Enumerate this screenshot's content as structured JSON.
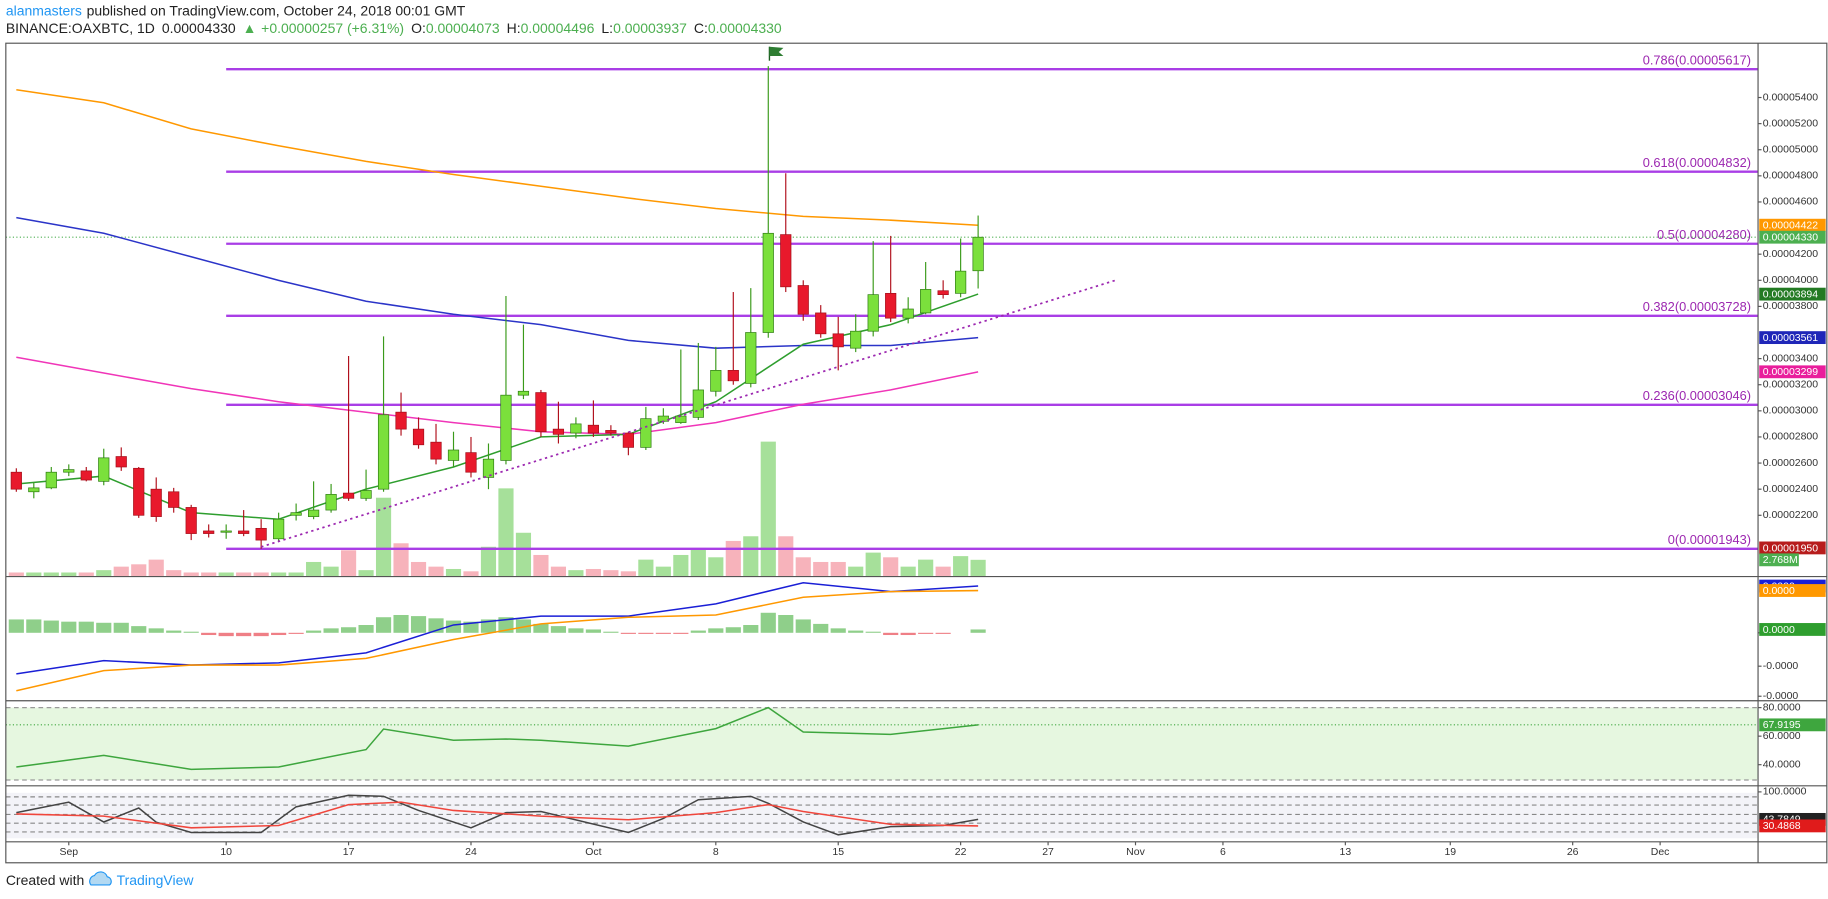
{
  "header": {
    "publisher": "alanmasters",
    "published": "published on TradingView.com, October 24, 2018 00:01 GMT",
    "symbol": "BINANCE:OAXBTC, 1D",
    "last": "0.00004330",
    "arrow": "▲",
    "change": "+0.00000257 (+6.31%)",
    "ohlc": [
      {
        "key": "O:",
        "value": "0.00004073"
      },
      {
        "key": "H:",
        "value": "0.00004496"
      },
      {
        "key": "L:",
        "value": "0.00003937"
      },
      {
        "key": "C:",
        "value": "0.00004330"
      }
    ]
  },
  "footer": {
    "created": "Created with",
    "brand": "TradingView"
  },
  "chart_data": [
    {
      "type": "candlestick",
      "xlim": [
        -0.6,
        99.6
      ],
      "xticks": [
        {
          "value": 3,
          "label": "Sep"
        },
        {
          "value": 12,
          "label": "10"
        },
        {
          "value": 19,
          "label": "17"
        },
        {
          "value": 26,
          "label": "24"
        },
        {
          "value": 33,
          "label": "Oct"
        },
        {
          "value": 40,
          "label": "8"
        },
        {
          "value": 47,
          "label": "15"
        },
        {
          "value": 54,
          "label": "22"
        },
        {
          "value": 59,
          "label": "27"
        },
        {
          "value": 64,
          "label": "Nov"
        },
        {
          "value": 69,
          "label": "6"
        },
        {
          "value": 76,
          "label": "13"
        },
        {
          "value": 82,
          "label": "19"
        },
        {
          "value": 89,
          "label": "26"
        },
        {
          "value": 94,
          "label": "Dec"
        }
      ],
      "ylim": [
        1.735e-05,
        5.807e-05
      ],
      "yticks": [
        {
          "value": 2.2e-05,
          "label": "0.00002200"
        },
        {
          "value": 2.4e-05,
          "label": "0.00002400"
        },
        {
          "value": 2.6e-05,
          "label": "0.00002600"
        },
        {
          "value": 2.8e-05,
          "label": "0.00002800"
        },
        {
          "value": 3e-05,
          "label": "0.00003000"
        },
        {
          "value": 3.2e-05,
          "label": "0.00003200"
        },
        {
          "value": 3.4e-05,
          "label": "0.00003400"
        },
        {
          "value": 3.8e-05,
          "label": "0.00003800"
        },
        {
          "value": 4e-05,
          "label": "0.00004000"
        },
        {
          "value": 4.2e-05,
          "label": "0.00004200"
        },
        {
          "value": 4.6e-05,
          "label": "0.00004600"
        },
        {
          "value": 4.8e-05,
          "label": "0.00004800"
        },
        {
          "value": 5e-05,
          "label": "0.00005000"
        },
        {
          "value": 5.2e-05,
          "label": "0.00005200"
        },
        {
          "value": 5.4e-05,
          "label": "0.00005400"
        }
      ],
      "up_color": "#7be03c",
      "down_color": "#e8192c",
      "open": [
        2.53e-05,
        2.38e-05,
        2.41e-05,
        2.53e-05,
        2.54e-05,
        2.46e-05,
        2.65e-05,
        2.56e-05,
        2.4e-05,
        2.38e-05,
        2.26e-05,
        2.08e-05,
        2.07e-05,
        2.08e-05,
        2.1e-05,
        2.02e-05,
        2.2e-05,
        2.19e-05,
        2.24e-05,
        2.37e-05,
        2.33e-05,
        2.4e-05,
        2.99e-05,
        2.86e-05,
        2.76e-05,
        2.62e-05,
        2.68e-05,
        2.49e-05,
        2.62e-05,
        3.12e-05,
        3.14e-05,
        2.86e-05,
        2.83e-05,
        2.89e-05,
        2.85e-05,
        2.83e-05,
        2.72e-05,
        2.92e-05,
        2.91e-05,
        2.95e-05,
        3.15e-05,
        3.31e-05,
        3.21e-05,
        3.6e-05,
        4.35e-05,
        3.96e-05,
        3.75e-05,
        3.59e-05,
        3.48e-05,
        3.61e-05,
        3.9e-05,
        3.71e-05,
        3.75e-05,
        3.92e-05,
        3.9e-05,
        4.073e-05
      ],
      "high": [
        2.56e-05,
        2.45e-05,
        2.57e-05,
        2.59e-05,
        2.57e-05,
        2.71e-05,
        2.72e-05,
        2.57e-05,
        2.49e-05,
        2.41e-05,
        2.28e-05,
        2.13e-05,
        2.13e-05,
        2.24e-05,
        2.17e-05,
        2.22e-05,
        2.29e-05,
        2.46e-05,
        2.44e-05,
        3.42e-05,
        2.55e-05,
        3.57e-05,
        3.14e-05,
        2.95e-05,
        2.9e-05,
        2.84e-05,
        2.8e-05,
        2.75e-05,
        3.88e-05,
        3.66e-05,
        3.16e-05,
        3.07e-05,
        2.95e-05,
        3.08e-05,
        2.89e-05,
        2.84e-05,
        3.03e-05,
        3.02e-05,
        3.47e-05,
        3.52e-05,
        3.49e-05,
        3.91e-05,
        3.94e-05,
        5.64e-05,
        4.82e-05,
        4e-05,
        3.81e-05,
        3.72e-05,
        3.74e-05,
        4.3e-05,
        4.34e-05,
        3.87e-05,
        4.14e-05,
        4e-05,
        4.32e-05,
        4.496e-05
      ],
      "low": [
        2.38e-05,
        2.33e-05,
        2.4e-05,
        2.5e-05,
        2.46e-05,
        2.43e-05,
        2.54e-05,
        2.18e-05,
        2.15e-05,
        2.22e-05,
        2.01e-05,
        2.03e-05,
        2.02e-05,
        2.04e-05,
        1.943e-05,
        2e-05,
        2.16e-05,
        2.17e-05,
        2.22e-05,
        2.31e-05,
        2.31e-05,
        2.38e-05,
        2.81e-05,
        2.71e-05,
        2.59e-05,
        2.57e-05,
        2.49e-05,
        2.4e-05,
        2.59e-05,
        3.09e-05,
        2.8e-05,
        2.75e-05,
        2.79e-05,
        2.8e-05,
        2.81e-05,
        2.66e-05,
        2.7e-05,
        2.9e-05,
        2.9e-05,
        2.93e-05,
        3.11e-05,
        3.2e-05,
        3.18e-05,
        3.56e-05,
        3.91e-05,
        3.69e-05,
        3.56e-05,
        3.31e-05,
        3.45e-05,
        3.57e-05,
        3.68e-05,
        3.67e-05,
        3.74e-05,
        3.86e-05,
        3.87e-05,
        3.937e-05
      ],
      "close": [
        2.4e-05,
        2.41e-05,
        2.53e-05,
        2.55e-05,
        2.47e-05,
        2.64e-05,
        2.57e-05,
        2.2e-05,
        2.19e-05,
        2.26e-05,
        2.06e-05,
        2.06e-05,
        2.08e-05,
        2.06e-05,
        2.01e-05,
        2.17e-05,
        2.22e-05,
        2.24e-05,
        2.36e-05,
        2.33e-05,
        2.39e-05,
        2.97e-05,
        2.86e-05,
        2.74e-05,
        2.63e-05,
        2.7e-05,
        2.53e-05,
        2.63e-05,
        3.12e-05,
        3.15e-05,
        2.84e-05,
        2.82e-05,
        2.9e-05,
        2.83e-05,
        2.83e-05,
        2.72e-05,
        2.94e-05,
        2.96e-05,
        2.96e-05,
        3.16e-05,
        3.31e-05,
        3.23e-05,
        3.6e-05,
        4.36e-05,
        3.95e-05,
        3.74e-05,
        3.59e-05,
        3.49e-05,
        3.61e-05,
        3.89e-05,
        3.71e-05,
        3.78e-05,
        3.93e-05,
        3.89e-05,
        4.07e-05,
        4.33e-05
      ],
      "vlim": [
        0,
        91000000
      ],
      "volume_colors": {
        "up": "#a6e09a",
        "down": "#f7b3bb"
      },
      "volume": [
        600000,
        600000,
        600000,
        600000,
        600000,
        1000000,
        1600000,
        2000000,
        2800000,
        1000000,
        600000,
        600000,
        600000,
        600000,
        600000,
        600000,
        600000,
        2400000,
        1600000,
        4400000,
        1000000,
        13400000,
        5600000,
        2400000,
        1600000,
        1200000,
        800000,
        5000000,
        15000000,
        7400000,
        3600000,
        1600000,
        1000000,
        1200000,
        1000000,
        800000,
        2800000,
        1600000,
        3600000,
        4800000,
        3200000,
        6000000,
        6800000,
        23000000,
        6800000,
        3200000,
        2400000,
        2400000,
        1600000,
        4000000,
        3200000,
        1600000,
        2800000,
        1600000,
        3400000,
        2768000
      ],
      "volume_label": {
        "value": 2768000,
        "label": "2.768M",
        "color": "#4caf50"
      },
      "moving_averages": [
        {
          "color": "#ff9800",
          "x": [
            0,
            5,
            10,
            15,
            20,
            25,
            30,
            35,
            40,
            45,
            50,
            55
          ],
          "values": [
            5.46e-05,
            5.36e-05,
            5.16e-05,
            5.03e-05,
            4.91e-05,
            4.81e-05,
            4.72e-05,
            4.63e-05,
            4.55e-05,
            4.49e-05,
            4.46e-05,
            4.422e-05
          ]
        },
        {
          "color": "#2b34c8",
          "x": [
            0,
            5,
            10,
            15,
            20,
            25,
            30,
            35,
            40,
            45,
            50,
            55
          ],
          "values": [
            4.48e-05,
            4.36e-05,
            4.18e-05,
            4e-05,
            3.84e-05,
            3.74e-05,
            3.66e-05,
            3.54e-05,
            3.48e-05,
            3.5e-05,
            3.5e-05,
            3.561e-05
          ]
        },
        {
          "color": "#f035b8",
          "x": [
            0,
            5,
            10,
            15,
            20,
            25,
            30,
            35,
            40,
            45,
            50,
            55
          ],
          "values": [
            3.41e-05,
            3.29e-05,
            3.17e-05,
            3.07e-05,
            2.99e-05,
            2.91e-05,
            2.84e-05,
            2.82e-05,
            2.91e-05,
            3.05e-05,
            3.16e-05,
            3.299e-05
          ]
        },
        {
          "color": "#2e9e2e",
          "x": [
            0,
            5,
            10,
            15,
            20,
            25,
            30,
            35,
            40,
            45,
            50,
            55
          ],
          "values": [
            2.44e-05,
            2.5e-05,
            2.22e-05,
            2.17e-05,
            2.4e-05,
            2.57e-05,
            2.8e-05,
            2.82e-05,
            3.07e-05,
            3.51e-05,
            3.66e-05,
            3.894e-05
          ]
        }
      ],
      "fib_color": "#a93ee6",
      "fib_levels": [
        {
          "label": "0.786(0.00005617)",
          "value": 5.617e-05
        },
        {
          "label": "0.618(0.00004832)",
          "value": 4.832e-05
        },
        {
          "label": "0.5(0.00004280)",
          "value": 4.28e-05
        },
        {
          "label": "0.382(0.00003728)",
          "value": 3.728e-05
        },
        {
          "label": "0.236(0.00003046)",
          "value": 3.046e-05
        },
        {
          "label": "0(0.00001943)",
          "value": 1.943e-05
        }
      ],
      "price_labels": [
        {
          "value": 4.422e-05,
          "label": "0.00004422",
          "color": "#ff9800"
        },
        {
          "value": 4.33e-05,
          "label": "0.00004330",
          "color": "#4caf50"
        },
        {
          "value": 3.894e-05,
          "label": "0.00003894",
          "color": "#237a23"
        },
        {
          "value": 3.561e-05,
          "label": "0.00003561",
          "color": "#1f26b8"
        },
        {
          "value": 3.299e-05,
          "label": "0.00003299",
          "color": "#e91e9c"
        },
        {
          "value": 1.95e-05,
          "label": "0.00001950",
          "color": "#b71c1c"
        }
      ]
    },
    {
      "type": "macd",
      "ylim": [
        -6e-07,
        5e-07
      ],
      "yticks": [
        {
          "value": 0,
          "label": "0.0000"
        },
        {
          "value": -3e-07,
          "label": "-0.0000"
        },
        {
          "value": -5.7e-07,
          "label": "-0.0000"
        }
      ],
      "histogram_colors": {
        "up": "#8fcf8a",
        "down": "#ef7f86"
      },
      "histogram": [
        1.2e-07,
        1.2e-07,
        1.1e-07,
        1e-07,
        1e-07,
        9e-08,
        9e-08,
        6e-08,
        4e-08,
        2e-08,
        1e-08,
        -2e-08,
        -3e-08,
        -3e-08,
        -3e-08,
        -2e-08,
        -1e-08,
        2e-08,
        4e-08,
        5e-08,
        7e-08,
        1.4e-07,
        1.6e-07,
        1.5e-07,
        1.3e-07,
        1.1e-07,
        1e-07,
        1.2e-07,
        1.4e-07,
        1.2e-07,
        8e-08,
        6e-08,
        4e-08,
        3e-08,
        1e-08,
        -1e-08,
        -1e-08,
        -1e-08,
        -1e-08,
        2e-08,
        4e-08,
        5e-08,
        7e-08,
        1.8e-07,
        1.6e-07,
        1.2e-07,
        8e-08,
        4e-08,
        2e-08,
        1e-08,
        -2e-08,
        -2e-08,
        -1e-08,
        -1e-08,
        0,
        3e-08
      ],
      "series": [
        {
          "color": "#1a1fd6",
          "x": [
            0,
            5,
            10,
            15,
            20,
            25,
            30,
            35,
            40,
            45,
            50,
            55
          ],
          "values": [
            -3.7e-07,
            -2.5e-07,
            -2.9e-07,
            -2.7e-07,
            -1.8e-07,
            7e-08,
            1.5e-07,
            1.5e-07,
            2.6e-07,
            4.5e-07,
            3.7e-07,
            4.2e-07
          ]
        },
        {
          "color": "#ff9800",
          "x": [
            0,
            5,
            10,
            15,
            20,
            25,
            30,
            35,
            40,
            45,
            50,
            55
          ],
          "values": [
            -5.2e-07,
            -3.4e-07,
            -2.9e-07,
            -2.9e-07,
            -2.3e-07,
            -6e-08,
            8e-08,
            1.4e-07,
            1.6e-07,
            3.2e-07,
            3.7e-07,
            3.8e-07
          ]
        }
      ],
      "price_labels": [
        {
          "value": 4.2e-07,
          "label": "0.0000",
          "color": "#1a1fd6"
        },
        {
          "value": 3.8e-07,
          "label": "0.0000",
          "color": "#ff9800"
        },
        {
          "value": 3e-08,
          "label": "0.0000",
          "color": "#2e9e2e"
        }
      ]
    },
    {
      "type": "rsi",
      "ylim": [
        26,
        84
      ],
      "yticks": [
        {
          "value": 40,
          "label": "40.0000"
        },
        {
          "value": 60,
          "label": "60.0000"
        },
        {
          "value": 80,
          "label": "80.0000"
        }
      ],
      "band_color": "#e6f7e0",
      "series": [
        {
          "color": "#3ea63e",
          "x": [
            0,
            5,
            10,
            15,
            20,
            21,
            25,
            28,
            30,
            35,
            40,
            43,
            45,
            50,
            55
          ],
          "values": [
            38.4,
            46.5,
            36.7,
            38.4,
            50.6,
            65,
            57.1,
            58,
            57.1,
            53,
            65.3,
            80,
            62.9,
            61.2,
            67.9195
          ]
        }
      ],
      "price_labels": [
        {
          "value": 67.9195,
          "color": "#3ea63e"
        }
      ]
    },
    {
      "type": "stoch",
      "ylim": [
        -2,
        110
      ],
      "yticks": [
        {
          "value": 100,
          "label": "100.0000"
        }
      ],
      "band_color": "#f3f3f8",
      "series": [
        {
          "color": "#444444",
          "x": [
            0,
            3,
            5,
            7,
            8,
            10,
            14,
            16,
            19,
            21,
            23,
            26,
            28,
            30,
            35,
            37,
            39,
            42,
            43,
            45,
            47,
            50,
            53,
            55
          ],
          "values": [
            57.6,
            79,
            38.5,
            67,
            38,
            17,
            17,
            69.5,
            93,
            91,
            62,
            26.6,
            57.6,
            60,
            17,
            45.7,
            84,
            91,
            76.6,
            38.5,
            12.3,
            29,
            31.4,
            43.7849
          ]
        },
        {
          "color": "#f0463c",
          "x": [
            0,
            5,
            10,
            15,
            19,
            22,
            25,
            30,
            35,
            40,
            43,
            45,
            50,
            55
          ],
          "values": [
            55,
            50.4,
            26.6,
            31.4,
            74,
            79,
            62,
            50.4,
            43,
            57.6,
            74,
            60,
            33.7,
            30.4868
          ]
        }
      ],
      "price_labels": [
        {
          "value": 43.7849,
          "color": "#222222"
        },
        {
          "value": 30.4868,
          "color": "#e01b1b"
        }
      ]
    }
  ]
}
